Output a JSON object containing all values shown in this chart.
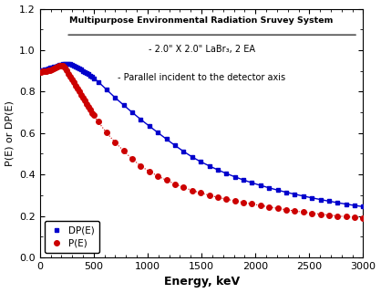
{
  "title_line1": "Multipurpose Environmental Radiation Sruvey System",
  "title_line2": "- 2.0\" X 2.0\" LaBr₃, 2 EA",
  "title_line3": "- Parallel incident to the detector axis",
  "xlabel": "Energy, keV",
  "ylabel": "P(E) or DP(E)",
  "xlim": [
    0,
    3000
  ],
  "ylim": [
    0.0,
    1.2
  ],
  "yticks": [
    0.0,
    0.2,
    0.4,
    0.6,
    0.8,
    1.0,
    1.2
  ],
  "xticks": [
    0,
    500,
    1000,
    1500,
    2000,
    2500,
    3000
  ],
  "dp_color": "#0000CC",
  "p_color": "#CC0000",
  "legend_dp": "DP(E)",
  "legend_p": "P(E)",
  "background_color": "#ffffff",
  "dp_keypoints": [
    [
      0,
      0.9
    ],
    [
      100,
      0.915
    ],
    [
      250,
      0.935
    ],
    [
      400,
      0.9
    ],
    [
      500,
      0.865
    ],
    [
      700,
      0.77
    ],
    [
      1000,
      0.64
    ],
    [
      1500,
      0.46
    ],
    [
      2000,
      0.355
    ],
    [
      2500,
      0.29
    ],
    [
      3000,
      0.245
    ]
  ],
  "p_keypoints": [
    [
      0,
      0.895
    ],
    [
      100,
      0.905
    ],
    [
      200,
      0.925
    ],
    [
      300,
      0.855
    ],
    [
      400,
      0.77
    ],
    [
      500,
      0.685
    ],
    [
      700,
      0.555
    ],
    [
      1000,
      0.42
    ],
    [
      1500,
      0.31
    ],
    [
      2000,
      0.255
    ],
    [
      2500,
      0.215
    ],
    [
      3000,
      0.19
    ]
  ]
}
